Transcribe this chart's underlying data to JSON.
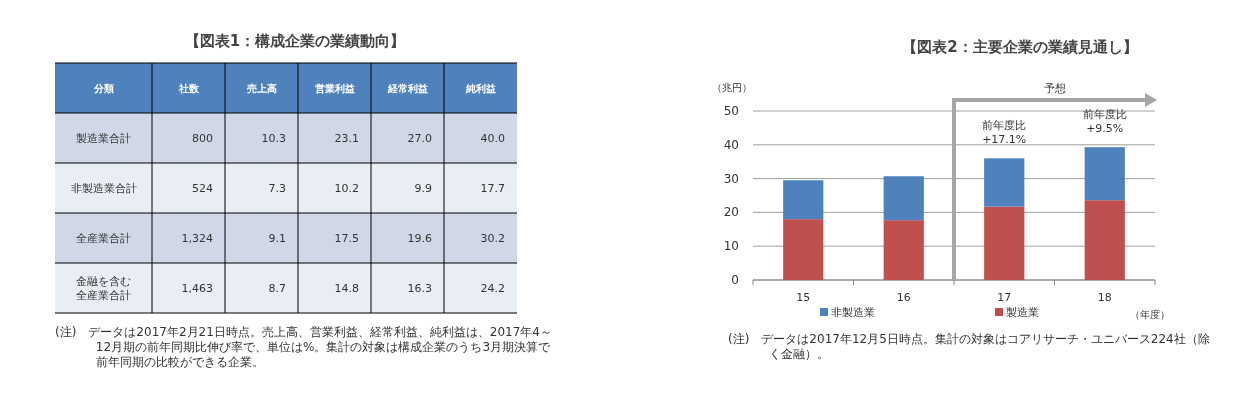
{
  "chart_data": [
    {
      "type": "heatmap",
      "title": "【図表1：構成企業の業績動向】",
      "ylabel": "分類",
      "categories": [
        "社数",
        "売上高",
        "営業利益",
        "経常利益",
        "純利益"
      ],
      "y_categories": [
        "製造業合計",
        "非製造業合計",
        "全産業合計",
        "金融を含む全産業合計"
      ],
      "cells": [
        [
          800,
          10.3,
          23.1,
          27.0,
          40.0
        ],
        [
          524,
          7.3,
          10.2,
          9.9,
          17.7
        ],
        [
          1324,
          9.1,
          17.5,
          19.6,
          30.2
        ],
        [
          1463,
          8.7,
          14.8,
          16.3,
          24.2
        ]
      ],
      "cell_labels": [
        [
          "800",
          "10.3",
          "23.1",
          "27.0",
          "40.0"
        ],
        [
          "524",
          "7.3",
          "10.2",
          "9.9",
          "17.7"
        ],
        [
          "1,324",
          "9.1",
          "17.5",
          "19.6",
          "30.2"
        ],
        [
          "1,463",
          "8.7",
          "14.8",
          "16.3",
          "24.2"
        ]
      ],
      "annotations": [
        "(注)　データは2017年2月21日時点。売上高、営業利益、経常利益、純利益は、2017年4～12月期の前年同期比伸び率で、単位は%。集計の対象は構成企業のうち3月期決算で前年同期の比較ができる企業。"
      ]
    },
    {
      "type": "bar",
      "title": "【図表2：主要企業の業績見通し】",
      "xlabel": "（年度）",
      "ylabel": "（兆円）",
      "stacked": true,
      "categories": [
        "15",
        "16",
        "17",
        "18"
      ],
      "series": [
        {
          "name": "製造業",
          "color": "#c0504d",
          "values": [
            18.0,
            17.7,
            21.7,
            23.6
          ]
        },
        {
          "name": "非製造業",
          "color": "#4f81bd",
          "values": [
            11.5,
            13.0,
            14.3,
            15.7
          ]
        }
      ],
      "ylim": [
        0,
        50
      ],
      "yticks": [
        0,
        10,
        20,
        30,
        40,
        50
      ],
      "grid": "y",
      "legend": "bottom",
      "annotations": [
        "予想",
        {
          "text": "前年度比\n+17.1%",
          "x": "17",
          "y": 36.0
        },
        {
          "text": "前年度比\n+9.5%",
          "x": "18",
          "y": 39.3
        },
        "(注)　データは2017年12月5日時点。集計の対象はコアリサーチ・ユニバース224社（除く金融）。"
      ]
    }
  ]
}
